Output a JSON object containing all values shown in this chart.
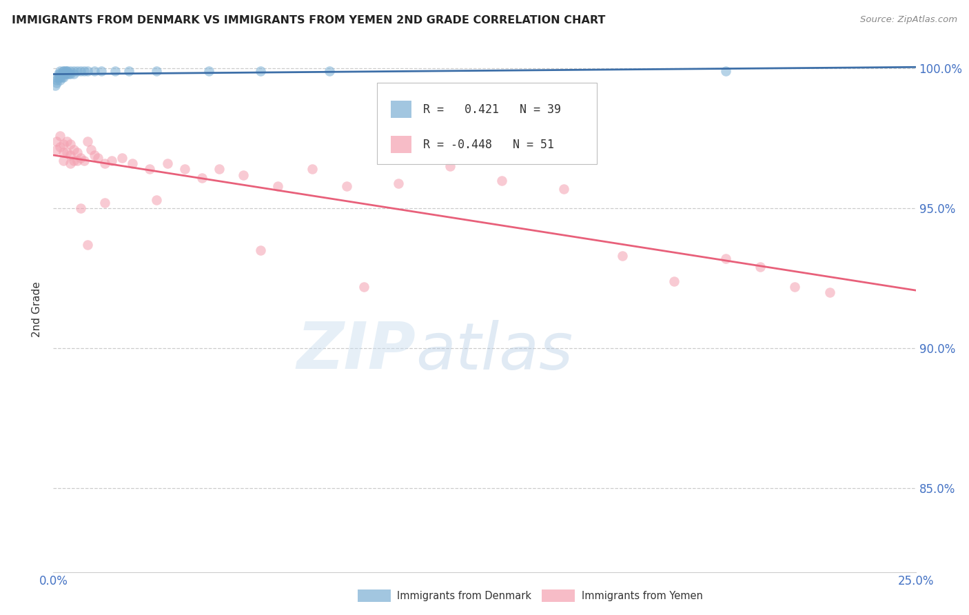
{
  "title": "IMMIGRANTS FROM DENMARK VS IMMIGRANTS FROM YEMEN 2ND GRADE CORRELATION CHART",
  "source": "Source: ZipAtlas.com",
  "ylabel": "2nd Grade",
  "denmark_color": "#7bafd4",
  "yemen_color": "#f4a0b0",
  "denmark_line_color": "#3d6fa8",
  "yemen_line_color": "#e8607a",
  "background_color": "#ffffff",
  "xlim": [
    0.0,
    0.25
  ],
  "ylim": [
    0.82,
    1.008
  ],
  "yticks": [
    0.85,
    0.9,
    0.95,
    1.0
  ],
  "denmark_x": [
    0.0005,
    0.001,
    0.001,
    0.001,
    0.0015,
    0.0015,
    0.002,
    0.002,
    0.002,
    0.002,
    0.0025,
    0.0025,
    0.003,
    0.003,
    0.003,
    0.003,
    0.0035,
    0.0035,
    0.004,
    0.004,
    0.004,
    0.0045,
    0.005,
    0.005,
    0.006,
    0.006,
    0.007,
    0.008,
    0.009,
    0.01,
    0.012,
    0.014,
    0.018,
    0.022,
    0.03,
    0.045,
    0.06,
    0.08,
    0.195
  ],
  "denmark_y": [
    0.994,
    0.997,
    0.996,
    0.995,
    0.998,
    0.997,
    0.999,
    0.998,
    0.997,
    0.996,
    0.998,
    0.997,
    0.999,
    0.999,
    0.998,
    0.997,
    0.999,
    0.998,
    0.999,
    0.999,
    0.998,
    0.998,
    0.999,
    0.998,
    0.999,
    0.998,
    0.999,
    0.999,
    0.999,
    0.999,
    0.999,
    0.999,
    0.999,
    0.999,
    0.999,
    0.999,
    0.999,
    0.999,
    0.999
  ],
  "yemen_x": [
    0.001,
    0.001,
    0.002,
    0.002,
    0.003,
    0.003,
    0.003,
    0.004,
    0.004,
    0.005,
    0.005,
    0.005,
    0.006,
    0.006,
    0.007,
    0.007,
    0.008,
    0.009,
    0.01,
    0.011,
    0.012,
    0.013,
    0.015,
    0.017,
    0.02,
    0.023,
    0.028,
    0.033,
    0.038,
    0.043,
    0.048,
    0.055,
    0.065,
    0.075,
    0.085,
    0.1,
    0.115,
    0.13,
    0.148,
    0.165,
    0.18,
    0.195,
    0.205,
    0.215,
    0.225,
    0.01,
    0.008,
    0.015,
    0.03,
    0.06,
    0.09
  ],
  "yemen_y": [
    0.974,
    0.971,
    0.976,
    0.972,
    0.973,
    0.97,
    0.967,
    0.974,
    0.97,
    0.973,
    0.969,
    0.966,
    0.971,
    0.967,
    0.97,
    0.967,
    0.968,
    0.967,
    0.974,
    0.971,
    0.969,
    0.968,
    0.966,
    0.967,
    0.968,
    0.966,
    0.964,
    0.966,
    0.964,
    0.961,
    0.964,
    0.962,
    0.958,
    0.964,
    0.958,
    0.959,
    0.965,
    0.96,
    0.957,
    0.933,
    0.924,
    0.932,
    0.929,
    0.922,
    0.92,
    0.937,
    0.95,
    0.952,
    0.953,
    0.935,
    0.922
  ],
  "legend_r_dk": "R =",
  "legend_v_dk": "0.421",
  "legend_n_dk": "N = 39",
  "legend_r_ye": "R =",
  "legend_v_ye": "-0.448",
  "legend_n_ye": "N = 51"
}
